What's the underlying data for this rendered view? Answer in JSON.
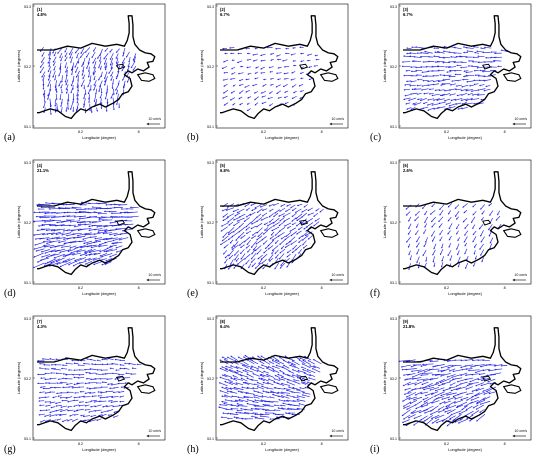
{
  "axes": {
    "xlabel": "Longitude (degree)",
    "ylabel": "Latitude (degrees)",
    "x_ticks": [
      "8.2",
      "8"
    ],
    "y_ticks": [
      "53.3",
      "53.2",
      "53.1"
    ]
  },
  "scale": {
    "label": "10 cm/s"
  },
  "colors": {
    "vector": "#2222ee",
    "coast": "#000000"
  },
  "panels": [
    {
      "id": "a",
      "mode": "(1)",
      "percent": "4.8%",
      "caption": "(a)"
    },
    {
      "id": "b",
      "mode": "(2)",
      "percent": "6.7%",
      "caption": "(b)"
    },
    {
      "id": "c",
      "mode": "(3)",
      "percent": "6.7%",
      "caption": "(c)"
    },
    {
      "id": "d",
      "mode": "(4)",
      "percent": "21.1%",
      "caption": "(d)"
    },
    {
      "id": "e",
      "mode": "(5)",
      "percent": "6.8%",
      "caption": "(e)"
    },
    {
      "id": "f",
      "mode": "(6)",
      "percent": "2.6%",
      "caption": "(f)"
    },
    {
      "id": "g",
      "mode": "(7)",
      "percent": "4.3%",
      "caption": "(g)"
    },
    {
      "id": "h",
      "mode": "(8)",
      "percent": "6.4%",
      "caption": "(h)"
    },
    {
      "id": "i",
      "mode": "(9)",
      "percent": "21.8%",
      "caption": "(i)"
    }
  ]
}
